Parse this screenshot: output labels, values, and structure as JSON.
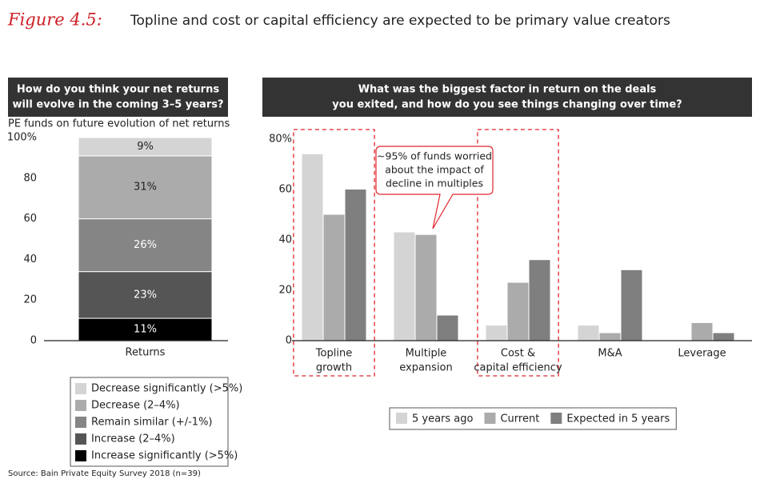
{
  "figure": {
    "label": "Figure 4.5:",
    "title": "Topline and cost or capital efficiency are expected to be primary value creators"
  },
  "source": "Source: Bain Private Equity Survey 2018 (n=39)",
  "chart_data": [
    {
      "type": "stacked_bar",
      "title": [
        "How do you think your net returns",
        "will evolve in the coming 3–5 years?"
      ],
      "subtitle": "PE funds on future evolution of net returns",
      "categories": [
        "Returns"
      ],
      "ylim": [
        0,
        100
      ],
      "yticks": [
        0,
        20,
        40,
        60,
        80,
        {
          "value": 100,
          "label": "100%"
        }
      ],
      "legend": "bottom",
      "series": [
        {
          "name": "Increase significantly (>5%)",
          "color": "#000000",
          "values": [
            11
          ],
          "value_labels": [
            "11%"
          ]
        },
        {
          "name": "Increase (2–4%)",
          "color": "#555555",
          "values": [
            23
          ],
          "value_labels": [
            "23%"
          ]
        },
        {
          "name": "Remain similar (+/-1%)",
          "color": "#858585",
          "values": [
            26
          ],
          "value_labels": [
            "26%"
          ]
        },
        {
          "name": "Decrease (2–4%)",
          "color": "#ababab",
          "values": [
            31
          ],
          "value_labels": [
            "31%"
          ]
        },
        {
          "name": "Decrease significantly (>5%)",
          "color": "#d4d4d4",
          "values": [
            9
          ],
          "value_labels": [
            "9%"
          ]
        }
      ]
    },
    {
      "type": "grouped_bar",
      "title": [
        "What was the biggest factor in return on the deals",
        "you exited, and how do you see things changing over time?"
      ],
      "categories": [
        [
          "Topline",
          "growth"
        ],
        [
          "Multiple",
          "expansion"
        ],
        [
          "Cost &",
          "capital efficiency"
        ],
        [
          "M&A"
        ],
        [
          "Leverage"
        ]
      ],
      "ylim": [
        0,
        80
      ],
      "yticks": [
        0,
        20,
        40,
        60,
        {
          "value": 80,
          "label": "80%"
        }
      ],
      "annotation": [
        "~95% of funds worried",
        "about the impact of",
        "decline in multiples"
      ],
      "highlight": [
        0,
        2
      ],
      "legend": "bottom",
      "series": [
        {
          "name": "5 years ago",
          "color": "#d4d4d4",
          "values": [
            74,
            43,
            6,
            6,
            0
          ]
        },
        {
          "name": "Current",
          "color": "#ababab",
          "values": [
            50,
            42,
            23,
            3,
            7
          ]
        },
        {
          "name": "Expected in 5 years",
          "color": "#7f7f7f",
          "values": [
            60,
            10,
            32,
            28,
            3
          ]
        }
      ]
    }
  ]
}
